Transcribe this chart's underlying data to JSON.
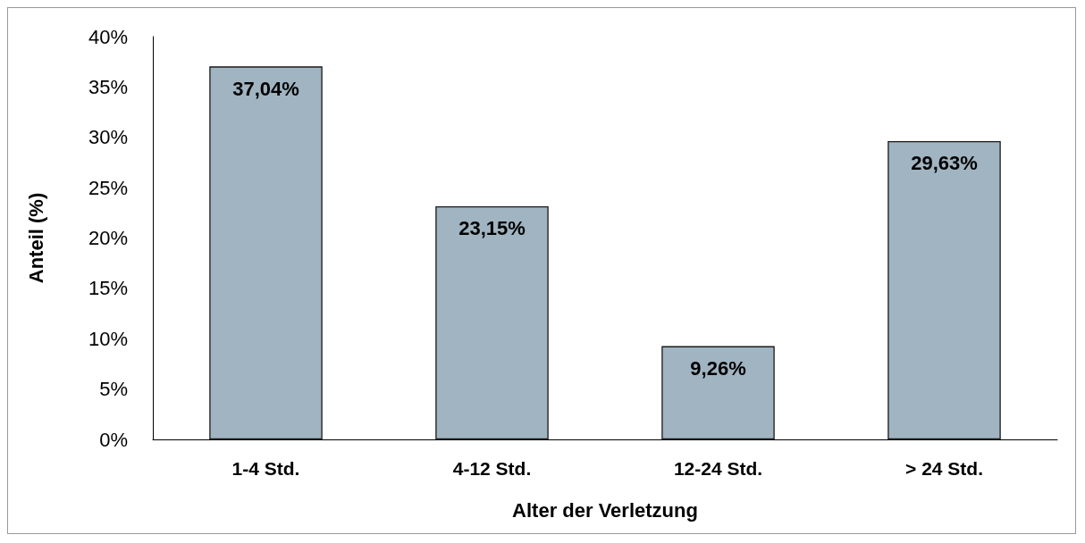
{
  "chart_data": {
    "type": "bar",
    "xlabel": "Alter der Verletzung",
    "ylabel": "Anteil (%)",
    "categories": [
      "1-4 Std.",
      "4-12 Std.",
      "12-24 Std.",
      "> 24 Std."
    ],
    "values": [
      37.04,
      23.15,
      9.26,
      29.63
    ],
    "value_labels": [
      "37,04%",
      "23,15%",
      "9,26%",
      "29,63%"
    ],
    "color": "#a0b4c1",
    "ylim": [
      0,
      40
    ],
    "yticks": [
      {
        "value": 0,
        "label": "0%"
      },
      {
        "value": 5,
        "label": "5%"
      },
      {
        "value": 10,
        "label": "10%"
      },
      {
        "value": 15,
        "label": "15%"
      },
      {
        "value": 20,
        "label": "20%"
      },
      {
        "value": 25,
        "label": "25%"
      },
      {
        "value": 30,
        "label": "30%"
      },
      {
        "value": 35,
        "label": "35%"
      },
      {
        "value": 40,
        "label": "40%"
      }
    ],
    "grid": false
  }
}
